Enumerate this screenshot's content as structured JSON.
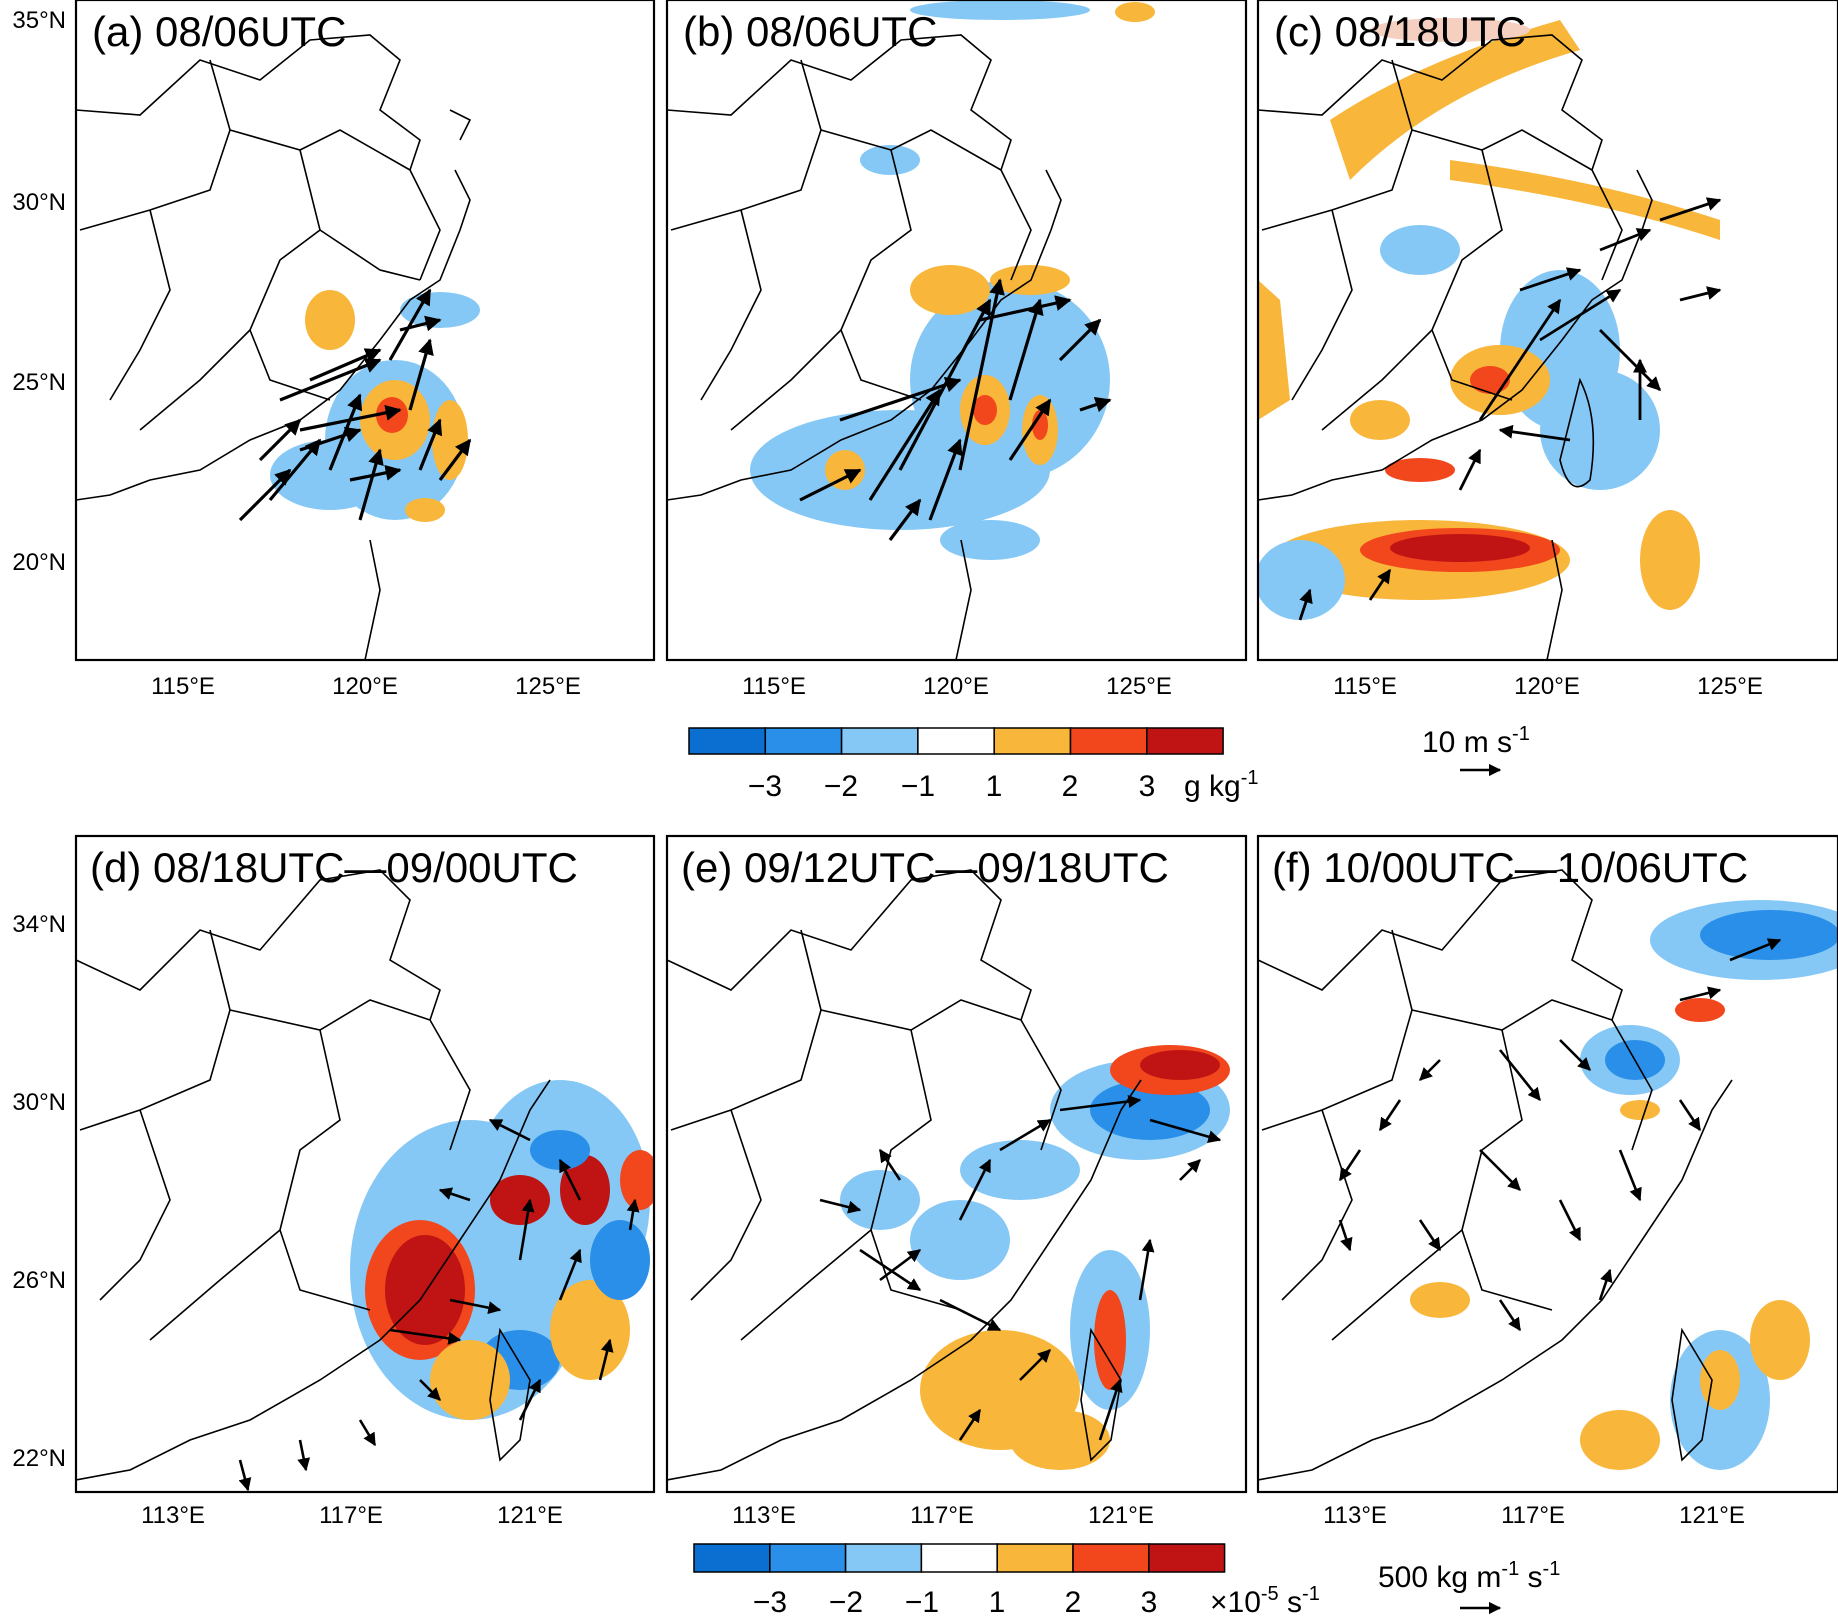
{
  "figure": {
    "rows": [
      {
        "lat_labels": [
          "35°N",
          "30°N",
          "25°N",
          "20°N"
        ],
        "lon_labels": [
          "115°E",
          "120°E",
          "125°E"
        ],
        "panels": [
          {
            "title": "(a) 08/06UTC"
          },
          {
            "title": "(b) 08/06UTC"
          },
          {
            "title": "(c) 08/18UTC"
          }
        ],
        "colorbar": {
          "colors": [
            "#0a6fd0",
            "#2a8fe8",
            "#86c8f5",
            "#ffffff",
            "#f8b63a",
            "#f2461c",
            "#c01414"
          ],
          "labels": [
            "−3",
            "−2",
            "−1",
            "1",
            "2",
            "3"
          ],
          "unit_base": "g kg",
          "unit_exp": "-1"
        },
        "reference_vector": {
          "value": "10 m s",
          "exp": "-1"
        }
      },
      {
        "lat_labels": [
          "34°N",
          "30°N",
          "26°N",
          "22°N"
        ],
        "lon_labels": [
          "113°E",
          "117°E",
          "121°E"
        ],
        "panels": [
          {
            "title": "(d) 08/18UTC—09/00UTC"
          },
          {
            "title": "(e) 09/12UTC—09/18UTC"
          },
          {
            "title": "(f) 10/00UTC—10/06UTC"
          }
        ],
        "colorbar": {
          "colors": [
            "#0a6fd0",
            "#2a8fe8",
            "#86c8f5",
            "#ffffff",
            "#f8b63a",
            "#f2461c",
            "#c01414"
          ],
          "labels": [
            "−3",
            "−2",
            "−1",
            "1",
            "2",
            "3"
          ],
          "unit_prefix": "×10",
          "unit_exp": "-5",
          "unit_suffix": " s",
          "unit_exp2": "-1"
        },
        "reference_vector": {
          "value": "500 kg m",
          "exp": "-1",
          "value2": " s",
          "exp2": "-1"
        }
      }
    ]
  }
}
